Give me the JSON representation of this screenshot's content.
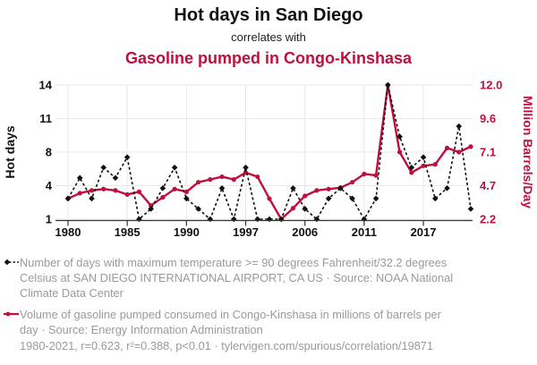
{
  "header": {
    "title": "Hot days in San Diego",
    "connector": "correlates with",
    "subtitle": "Gasoline pumped in Congo-Kinshasa"
  },
  "colors": {
    "accent": "#c10f3d",
    "series_black": "#111111",
    "grid": "#e8e8e8",
    "axis": "#333333",
    "muted_text": "#9a9a9a",
    "tick_text": "#111111"
  },
  "chart_data": {
    "type": "line",
    "title": "Hot days in San Diego correlates with Gasoline pumped in Congo-Kinshasa",
    "x_note": "Years 1980-2021 with some years missing; 35 evenly spaced points; ticks every 5th point",
    "x_tick_labels": [
      "1980",
      "1985",
      "1990",
      "1997",
      "2006",
      "2011",
      "2017"
    ],
    "x_tick_indices": [
      0,
      5,
      10,
      15,
      20,
      25,
      30
    ],
    "grid": "on",
    "legend_position": "below",
    "left_axis": {
      "label": "Hot days",
      "ticks": [
        "14",
        "11",
        "8",
        "4",
        "1"
      ],
      "range": [
        1,
        14
      ]
    },
    "right_axis": {
      "label": "Million Barrels/Day",
      "ticks": [
        "12.0",
        "9.6",
        "7.1",
        "4.7",
        "2.2"
      ],
      "range": [
        2.2,
        12.0
      ]
    },
    "series": [
      {
        "name": "Hot days in San Diego",
        "axis": "left",
        "style": "dashed-diamond",
        "color": "#111111",
        "values": [
          3,
          5,
          3,
          6,
          5,
          7,
          1,
          2,
          4,
          6,
          3,
          2,
          1,
          4,
          1,
          6,
          1,
          1,
          1,
          4,
          2,
          1,
          3,
          4,
          3,
          1,
          3,
          14,
          9,
          6,
          7,
          3,
          4,
          10,
          2
        ]
      },
      {
        "name": "Gasoline pumped in Congo-Kinshasa",
        "axis": "right",
        "style": "solid-dot",
        "color": "#c10f3d",
        "values": [
          3.7,
          4.1,
          4.3,
          4.4,
          4.3,
          4.0,
          4.2,
          3.2,
          3.8,
          4.4,
          4.2,
          4.9,
          5.1,
          5.3,
          5.1,
          5.6,
          5.3,
          3.7,
          2.2,
          3.0,
          3.9,
          4.3,
          4.4,
          4.5,
          4.9,
          5.5,
          5.4,
          12.0,
          7.1,
          5.6,
          6.1,
          6.2,
          7.4,
          7.1,
          7.5
        ]
      }
    ]
  },
  "legend": [
    {
      "lines": [
        "Number of days with maximum temperature >= 90 degrees Fahrenheit/32.2 degrees",
        "Celsius at SAN DIEGO INTERNATIONAL AIRPORT, CA US · Source: NOAA National",
        "Climate Data Center"
      ]
    },
    {
      "lines": [
        "Volume of gasoline pumped consumed in Congo-Kinshasa in millions of barrels per",
        "day · Source: Energy Information Administration"
      ]
    }
  ],
  "footer": {
    "text": "1980-2021, r=0.623, r²=0.388, p<0.01 · tylervigen.com/spurious/correlation/19871"
  }
}
